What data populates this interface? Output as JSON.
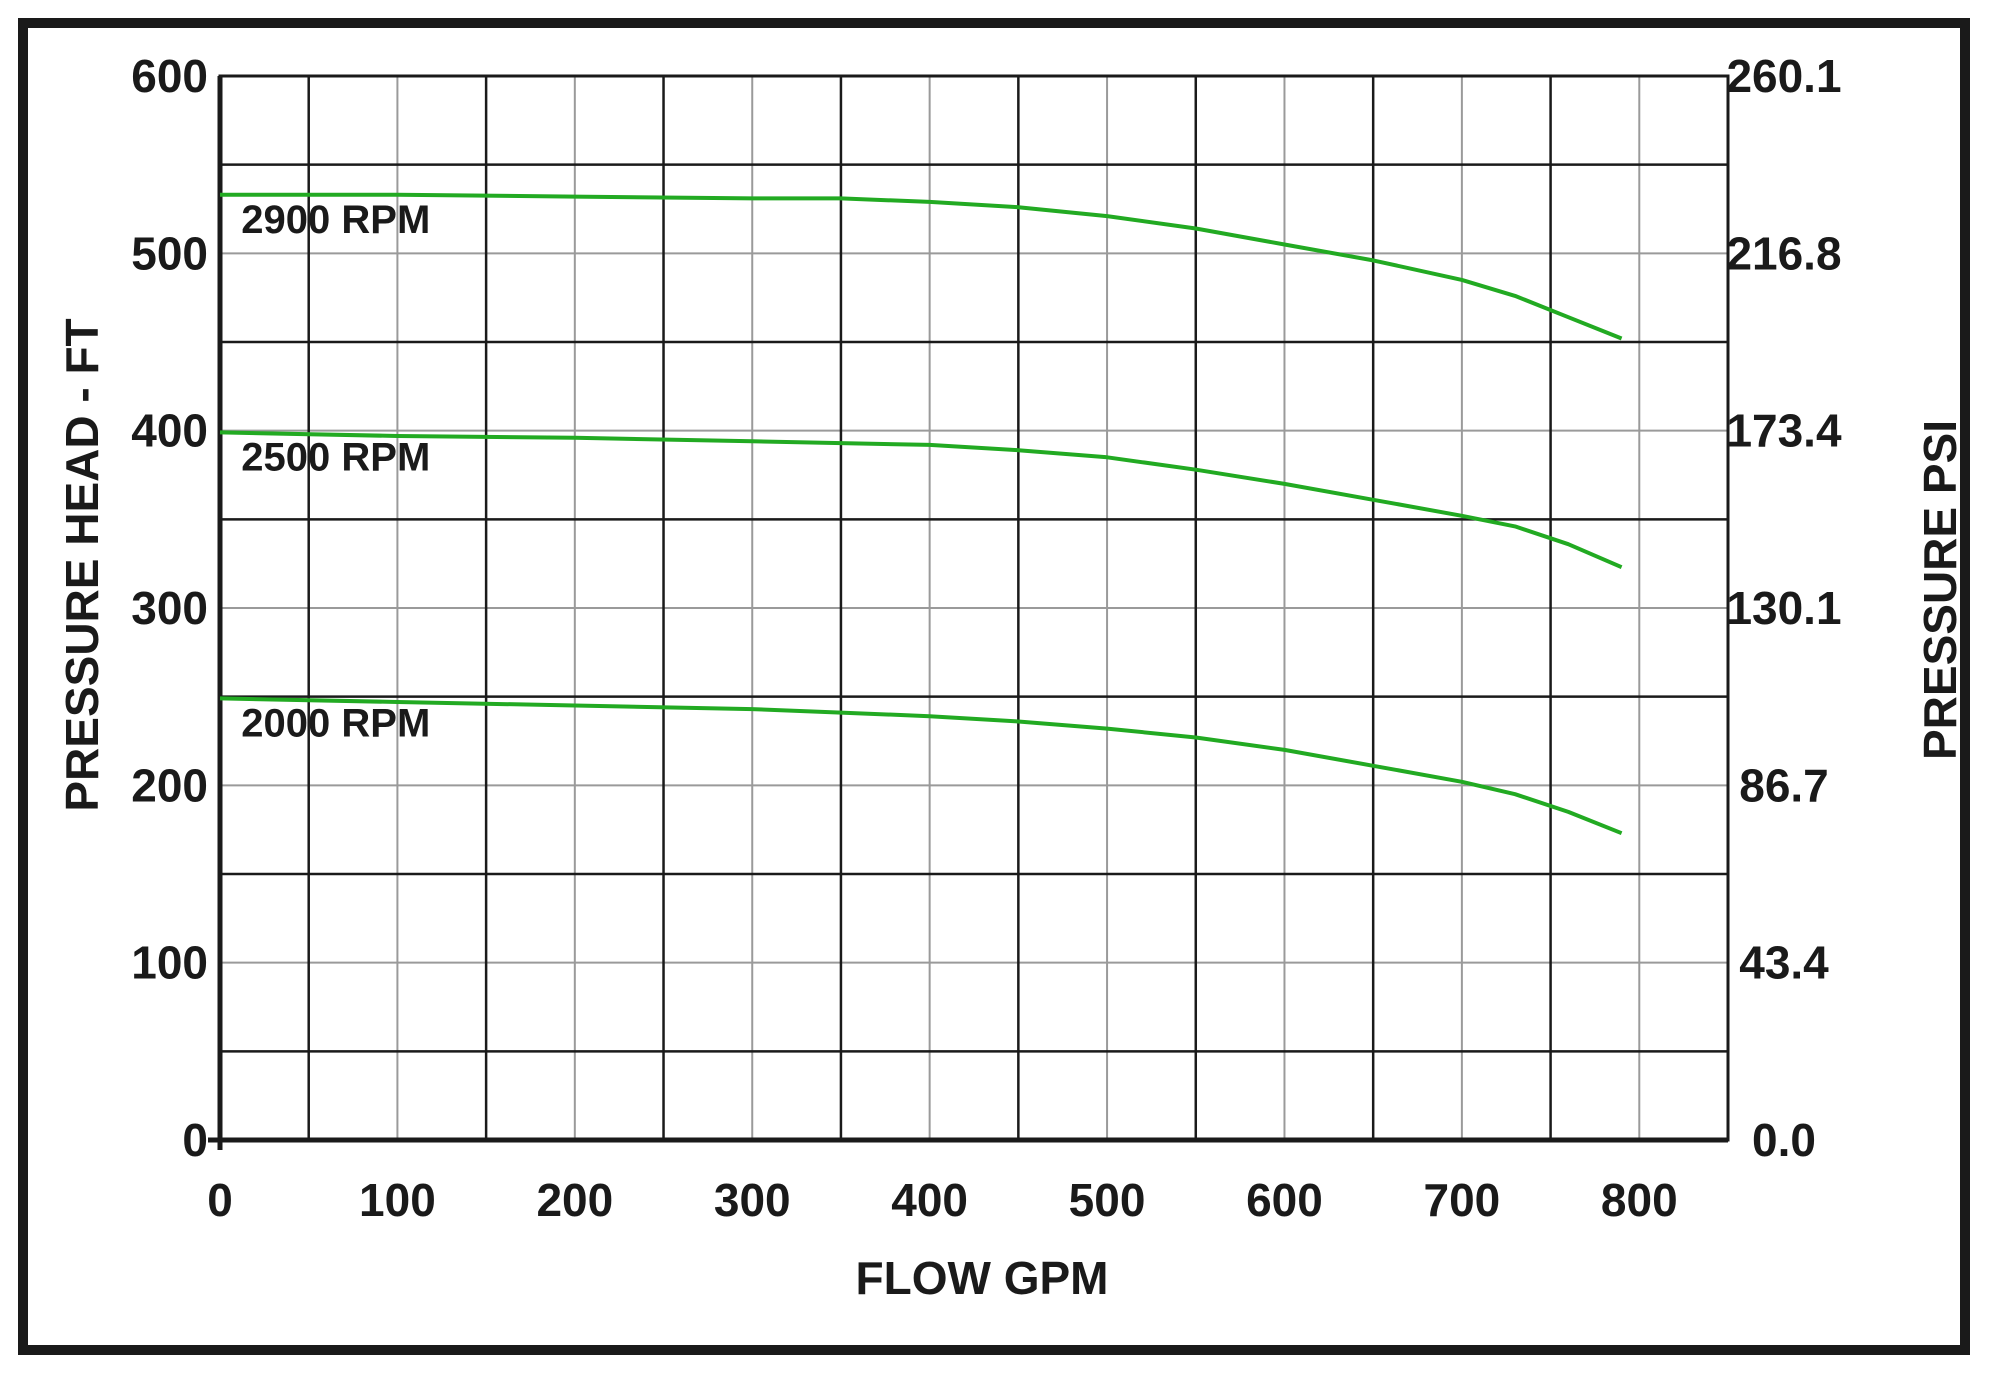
{
  "chart_data": {
    "type": "line",
    "title": "",
    "xlabel": "FLOW GPM",
    "ylabel": "PRESSURE HEAD - FT",
    "y2label": "PRESSURE PSI",
    "xlim": [
      0,
      850
    ],
    "ylim": [
      0,
      600
    ],
    "x_ticks": [
      "0",
      "100",
      "200",
      "300",
      "400",
      "500",
      "600",
      "700",
      "800"
    ],
    "y_ticks": [
      "0",
      "100",
      "200",
      "300",
      "400",
      "500",
      "600"
    ],
    "y2_ticks": [
      "0.0",
      "43.4",
      "86.7",
      "130.1",
      "173.4",
      "216.8",
      "260.1"
    ],
    "grid": true,
    "line_color": "#22aa22",
    "series": [
      {
        "name": "2900 RPM",
        "x": [
          0,
          100,
          200,
          300,
          350,
          400,
          450,
          500,
          550,
          600,
          650,
          700,
          730,
          760,
          790
        ],
        "values": [
          533,
          533,
          532,
          531,
          531,
          529,
          526,
          521,
          514,
          505,
          496,
          485,
          476,
          464,
          452
        ]
      },
      {
        "name": "2500 RPM",
        "x": [
          0,
          100,
          200,
          300,
          350,
          400,
          450,
          500,
          550,
          600,
          650,
          700,
          730,
          760,
          790
        ],
        "values": [
          399,
          397,
          396,
          394,
          393,
          392,
          389,
          385,
          378,
          370,
          361,
          352,
          346,
          336,
          323
        ]
      },
      {
        "name": "2000 RPM",
        "x": [
          0,
          100,
          200,
          300,
          350,
          400,
          450,
          500,
          550,
          600,
          650,
          700,
          730,
          760,
          790
        ],
        "values": [
          249,
          247,
          245,
          243,
          241,
          239,
          236,
          232,
          227,
          220,
          211,
          202,
          195,
          185,
          173
        ]
      }
    ]
  }
}
